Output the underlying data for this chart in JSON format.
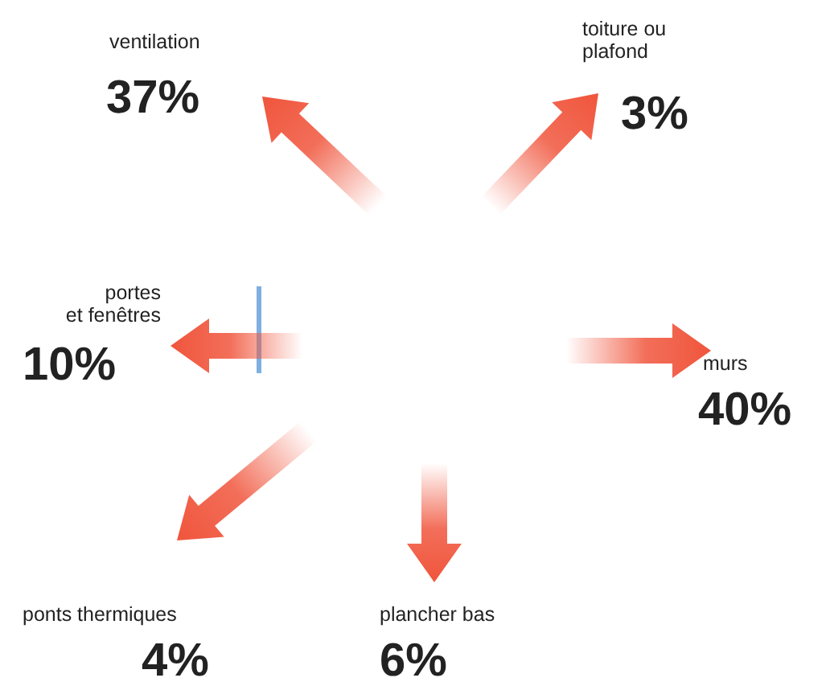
{
  "chart_data": {
    "type": "other",
    "categories": [
      [
        "ventilation"
      ],
      [
        "toiture ou",
        "plafond"
      ],
      [
        "portes",
        "et fenêtres"
      ],
      [
        "murs"
      ],
      [
        "ponts thermiques"
      ],
      [
        "plancher bas"
      ]
    ],
    "values": [
      37,
      3,
      10,
      40,
      4,
      6
    ],
    "value_labels": [
      "37%",
      "3%",
      "10%",
      "40%",
      "4%",
      "6%"
    ],
    "color": "#f0553c"
  }
}
